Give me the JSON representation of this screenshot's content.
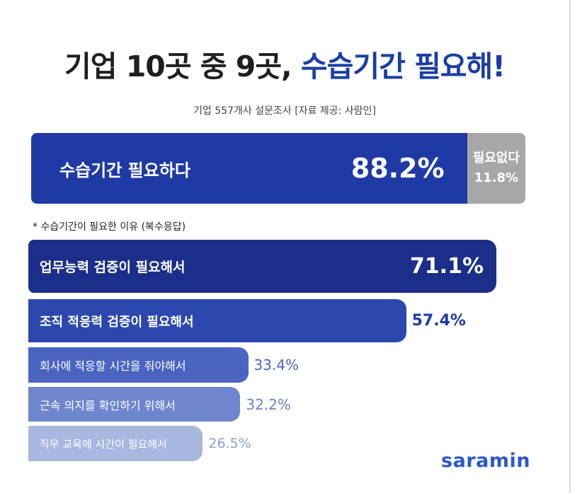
{
  "title": {
    "part1": "기업 10곳 중 9곳,",
    "part2": "수습기간 필요해!"
  },
  "subtitle": "기업 557개사 설문조사 [자료 제공: 사람인]",
  "note": "* 수습기간이 필요한 이유 (복수응답)",
  "brand": "saramin",
  "colors": {
    "need": "#1f3aa5",
    "no_need": "#a7a7a7",
    "reasons": [
      "#1b2f8a",
      "#2c48ae",
      "#4a64c0",
      "#6e86cd",
      "#a8b7df"
    ],
    "reason_values": [
      "#ffffff",
      "#1f3aa5",
      "#4c63bd",
      "#6c80c9",
      "#8d9dd3"
    ]
  },
  "chart_data": [
    {
      "type": "bar",
      "orientation": "horizontal-stacked",
      "categories": [
        "수습기간 필요하다",
        "필요없다"
      ],
      "values": [
        88.2,
        11.8
      ],
      "labels": [
        "88.2%",
        "11.8%"
      ],
      "unit": "%"
    },
    {
      "type": "bar",
      "orientation": "horizontal",
      "title": "* 수습기간이 필요한 이유 (복수응답)",
      "categories": [
        "업무능력 검증이 필요해서",
        "조직 적응력 검증이 필요해서",
        "회사에 적응할 시간을 줘야해서",
        "근속 의지를 확인하기 위해서",
        "직무 교육에 시간이 필요해서"
      ],
      "values": [
        71.1,
        57.4,
        33.4,
        32.2,
        26.5
      ],
      "labels": [
        "71.1%",
        "57.4%",
        "33.4%",
        "32.2%",
        "26.5%"
      ],
      "unit": "%"
    }
  ]
}
